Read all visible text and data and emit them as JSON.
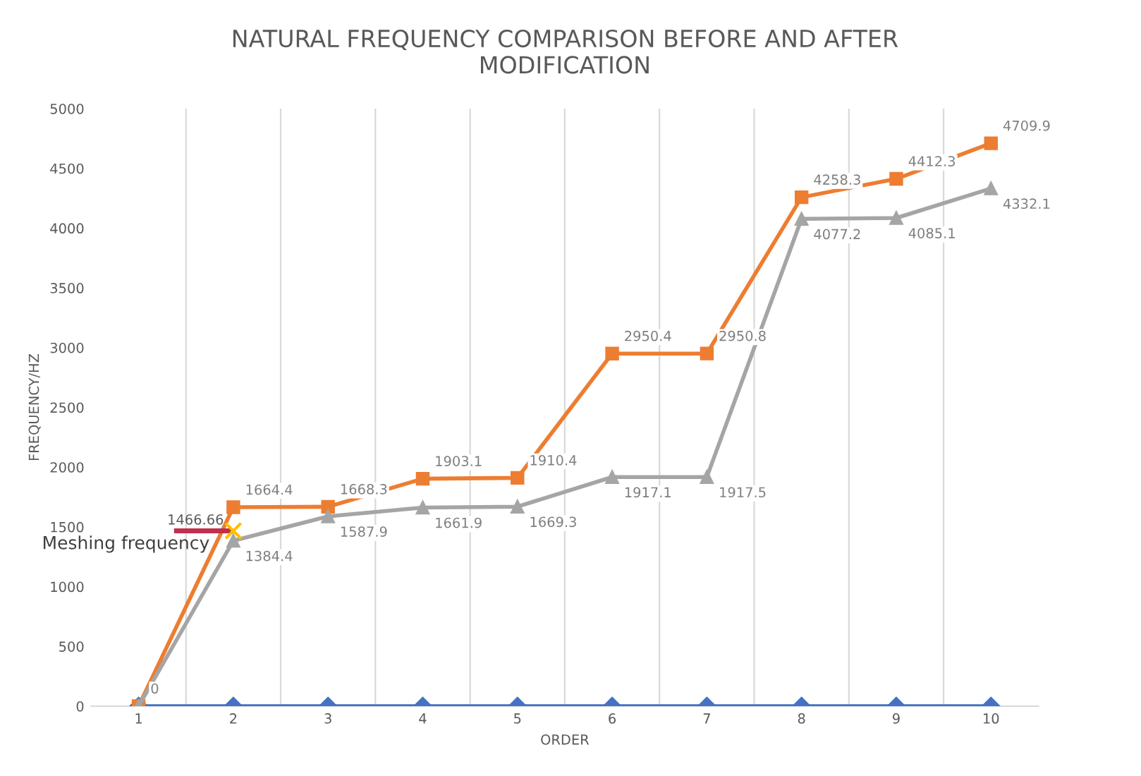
{
  "chart_data": {
    "type": "line",
    "title": "NATURAL FREQUENCY COMPARISON BEFORE AND AFTER\nMODIFICATION",
    "xlabel": "ORDER",
    "ylabel": "FREQUENCY/HZ",
    "categories": [
      "1",
      "2",
      "3",
      "4",
      "5",
      "6",
      "7",
      "8",
      "9",
      "10"
    ],
    "ylim": [
      0,
      5000
    ],
    "yticks": [
      0,
      500,
      1000,
      1500,
      2000,
      2500,
      3000,
      3500,
      4000,
      4500,
      5000
    ],
    "grid": "x",
    "legend": false,
    "line_style": "solid",
    "series": [
      {
        "color": "#4472c4",
        "marker": "diamond",
        "values": [
          0,
          0,
          0,
          0,
          0,
          0,
          0,
          0,
          0,
          0
        ],
        "value_labels": [
          "0",
          null,
          null,
          null,
          null,
          null,
          null,
          null,
          null,
          null
        ]
      },
      {
        "color": "#ed7d31",
        "marker": "square",
        "values": [
          0,
          1664.4,
          1668.3,
          1903.1,
          1910.4,
          2950.4,
          2950.8,
          4258.3,
          4412.3,
          4709.9
        ],
        "value_labels": [
          null,
          "1664.4",
          "1668.3",
          "1903.1",
          "1910.4",
          "2950.4",
          "2950.8",
          "4258.3",
          "4412.3",
          "4709.9"
        ]
      },
      {
        "color": "#a5a5a5",
        "marker": "triangle",
        "values": [
          0,
          1384.4,
          1587.9,
          1661.9,
          1669.3,
          1917.1,
          1917.5,
          4077.2,
          4085.1,
          4332.1
        ],
        "value_labels": [
          null,
          "1384.4",
          "1587.9",
          "1661.9",
          "1669.3",
          "1917.1",
          "1917.5",
          "4077.2",
          "4085.1",
          "4332.1"
        ]
      },
      {
        "name": "Meshing frequency",
        "type": "scatter",
        "color": "#ffc000",
        "marker": "cross",
        "values": [
          null,
          1466.66,
          null,
          null,
          null,
          null,
          null,
          null,
          null,
          null
        ],
        "value_labels": [
          null,
          "1466.66",
          null,
          null,
          null,
          null,
          null,
          null,
          null,
          null
        ]
      }
    ]
  }
}
